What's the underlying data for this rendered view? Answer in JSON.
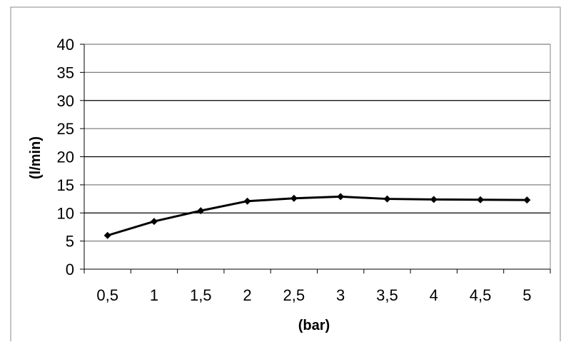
{
  "chart_data": {
    "type": "line",
    "title": "",
    "xlabel": "(bar)",
    "ylabel": "(l/min)",
    "categories": [
      "0,5",
      "1",
      "1,5",
      "2",
      "2,5",
      "3",
      "3,5",
      "4",
      "4,5",
      "5"
    ],
    "series": [
      {
        "values": [
          6.0,
          8.5,
          10.4,
          12.1,
          12.6,
          12.9,
          12.5,
          12.4,
          12.35,
          12.3
        ]
      }
    ],
    "ylim": [
      0,
      40
    ],
    "yticks": [
      0,
      5,
      10,
      15,
      20,
      25,
      30,
      35,
      40
    ],
    "grid": true,
    "legend": "none",
    "colors": {
      "line": "#000000",
      "grid": "#808080"
    }
  }
}
